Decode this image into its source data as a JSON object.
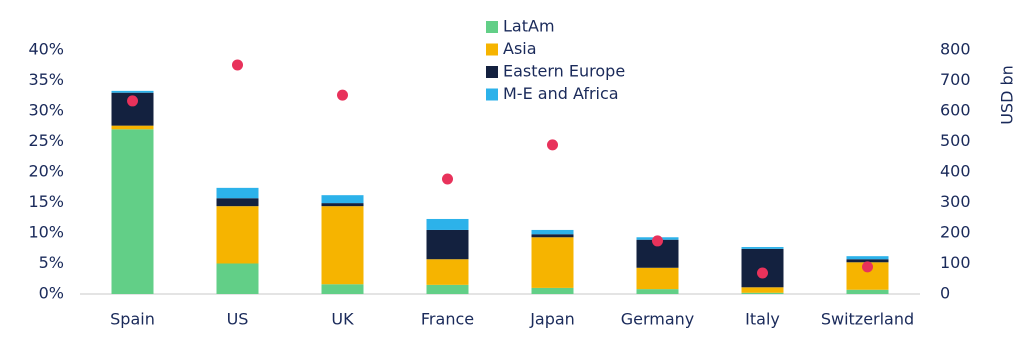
{
  "chart_data": {
    "type": "bar",
    "categories": [
      "Spain",
      "US",
      "UK",
      "France",
      "Japan",
      "Germany",
      "Italy",
      "Switzerland"
    ],
    "stacked": true,
    "y2label": "USD bn",
    "series": [
      {
        "name": "LatAm",
        "color": "#62cf87",
        "values": [
          27,
          5,
          1.6,
          1.5,
          1.0,
          0.8,
          0.2,
          0.7
        ]
      },
      {
        "name": "Asia",
        "color": "#f6b400",
        "values": [
          0.6,
          9.4,
          12.8,
          4.2,
          8.3,
          3.5,
          0.9,
          4.5
        ]
      },
      {
        "name": "Eastern Europe",
        "color": "#13213f",
        "values": [
          5.4,
          1.3,
          0.5,
          4.8,
          0.5,
          4.6,
          6.3,
          0.5
        ]
      },
      {
        "name": "M-E and Africa",
        "color": "#2cb2ea",
        "values": [
          0.3,
          1.7,
          1.3,
          1.8,
          0.7,
          0.4,
          0.3,
          0.5
        ]
      },
      {
        "type": "scatter",
        "axis": "y2",
        "color": "#e8325b",
        "values": [
          633,
          751,
          652,
          377,
          489,
          174,
          69,
          89
        ]
      }
    ],
    "ylim": [
      0,
      40
    ],
    "yticks": [
      {
        "value": 0,
        "label": "0%"
      },
      {
        "value": 5,
        "label": "5%"
      },
      {
        "value": 10,
        "label": "10%"
      },
      {
        "value": 15,
        "label": "15%"
      },
      {
        "value": 20,
        "label": "20%"
      },
      {
        "value": 25,
        "label": "25%"
      },
      {
        "value": 30,
        "label": "30%"
      },
      {
        "value": 35,
        "label": "35%"
      },
      {
        "value": 40,
        "label": "40%"
      }
    ],
    "y2lim": [
      0,
      800
    ],
    "y2ticks": [
      0,
      100,
      200,
      300,
      400,
      500,
      600,
      700,
      800
    ]
  }
}
